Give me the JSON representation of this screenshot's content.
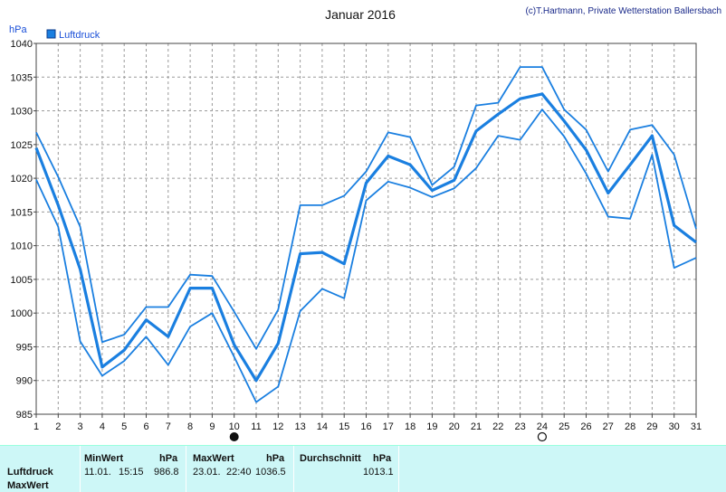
{
  "chart_data": {
    "type": "line",
    "title": "Januar 2016",
    "copyright": "(c)T.Hartmann, Private Wetterstation Ballersbach",
    "ylabel": "hPa",
    "ylim": [
      985,
      1040
    ],
    "yticks": [
      985,
      990,
      995,
      1000,
      1005,
      1010,
      1015,
      1020,
      1025,
      1030,
      1035,
      1040
    ],
    "x": [
      1,
      2,
      3,
      4,
      5,
      6,
      7,
      8,
      9,
      10,
      11,
      12,
      13,
      14,
      15,
      16,
      17,
      18,
      19,
      20,
      21,
      22,
      23,
      24,
      25,
      26,
      27,
      28,
      29,
      30,
      31
    ],
    "xlim": [
      1,
      31
    ],
    "grid": true,
    "legend": "top-left",
    "legend_label": "Luftdruck",
    "color": "#1a7fe0",
    "markers": [
      {
        "day": 10,
        "symbol": "filled-circle"
      },
      {
        "day": 24,
        "symbol": "open-circle"
      }
    ],
    "series": [
      {
        "role": "max",
        "values": [
          1026.8,
          1020.2,
          1012.8,
          995.7,
          996.8,
          1000.9,
          1000.9,
          1005.7,
          1005.5,
          1000.2,
          994.7,
          1000.5,
          1016.0,
          1016.0,
          1017.4,
          1021.0,
          1026.8,
          1026.1,
          1019.0,
          1021.7,
          1030.8,
          1031.2,
          1036.5,
          1036.5,
          1030.2,
          1027.2,
          1021.0,
          1027.2,
          1027.9,
          1023.5,
          1012.5
        ]
      },
      {
        "role": "avg",
        "values": [
          1024.5,
          1016.0,
          1006.5,
          992.0,
          994.5,
          999.0,
          996.5,
          1003.7,
          1003.7,
          995.3,
          990.0,
          995.5,
          1008.8,
          1009.0,
          1007.3,
          1019.3,
          1023.3,
          1022.0,
          1018.2,
          1019.7,
          1027.0,
          1029.5,
          1031.8,
          1032.5,
          1028.5,
          1024.2,
          1017.8,
          1022.0,
          1026.3,
          1013.0,
          1010.5
        ]
      },
      {
        "role": "min",
        "values": [
          1019.8,
          1012.8,
          995.8,
          990.7,
          992.9,
          996.5,
          992.3,
          998.0,
          1000.0,
          993.5,
          986.8,
          989.1,
          1000.3,
          1003.6,
          1002.2,
          1016.7,
          1019.5,
          1018.6,
          1017.2,
          1018.5,
          1021.5,
          1026.3,
          1025.7,
          1030.2,
          1026.2,
          1020.7,
          1014.3,
          1014.0,
          1023.5,
          1006.7,
          1008.2
        ]
      }
    ]
  },
  "stats": {
    "row_label": "Luftdruck",
    "row_label2": "MaxWert",
    "min_header": "MinWert",
    "min_unit": "hPa",
    "min_date": "11.01.",
    "min_time": "15:15",
    "min_value": "986.8",
    "max_header": "MaxWert",
    "max_unit": "hPa",
    "max_date": "23.01.",
    "max_time": "22:40",
    "max_value": "1036.5",
    "avg_header": "Durchschnitt",
    "avg_unit": "hPa",
    "avg_value": "1013.1"
  }
}
